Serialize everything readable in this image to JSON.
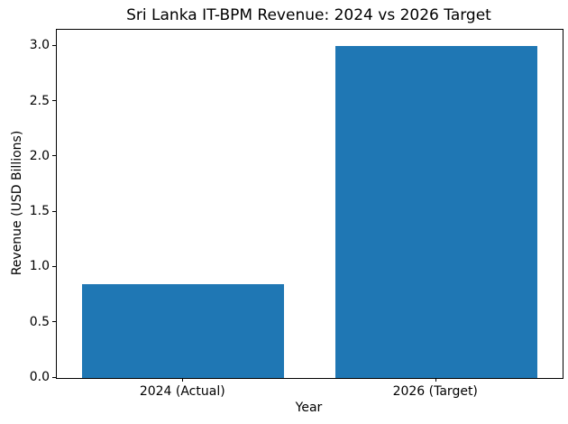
{
  "figure": {
    "background": "#ffffff"
  },
  "chart_data": {
    "type": "bar",
    "title": "Sri Lanka IT-BPM Revenue: 2024 vs 2026 Target",
    "xlabel": "Year",
    "ylabel": "Revenue (USD Billions)",
    "categories": [
      "2024 (Actual)",
      "2026 (Target)"
    ],
    "values": [
      0.85,
      3.0
    ],
    "yticks": [
      0.0,
      0.5,
      1.0,
      1.5,
      2.0,
      2.5,
      3.0
    ],
    "ytick_labels": [
      "0.0",
      "0.5",
      "1.0",
      "1.5",
      "2.0",
      "2.5",
      "3.0"
    ],
    "ylim": [
      0,
      3.15
    ],
    "xlim": [
      -0.5,
      1.5
    ],
    "bar_width": 0.8,
    "bar_color": "#1f77b4",
    "spine_color": "#000000",
    "grid": false,
    "legend": null
  }
}
